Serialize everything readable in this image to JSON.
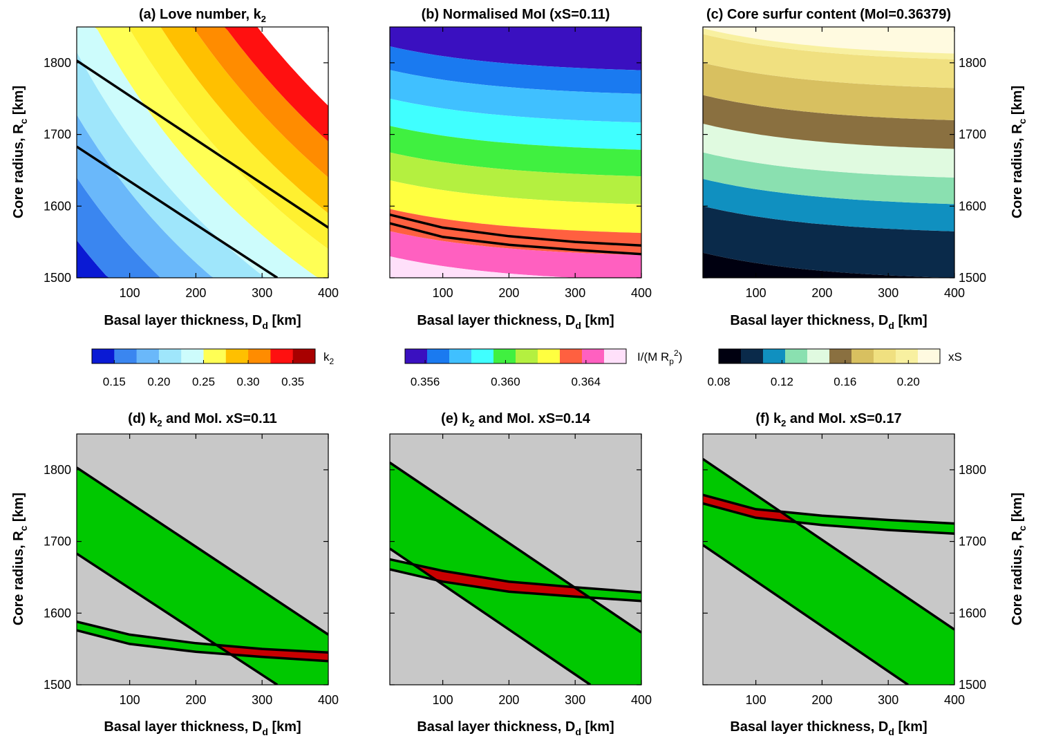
{
  "figure": {
    "panels": [
      {
        "id": "a",
        "title": "(a) Love number, ",
        "title_sym": "k",
        "title_sub": "2",
        "title_tail": ""
      },
      {
        "id": "b",
        "title": "(b) Normalised MoI (xS=0.11)",
        "title_sym": "",
        "title_sub": "",
        "title_tail": ""
      },
      {
        "id": "c",
        "title": "(c) Core surfur content (MoI=0.36379)",
        "title_sym": "",
        "title_sub": "",
        "title_tail": ""
      },
      {
        "id": "d",
        "title": "(d) ",
        "title_sym": "k",
        "title_sub": "2",
        "title_tail": " and MoI. xS=0.11"
      },
      {
        "id": "e",
        "title": "(e) ",
        "title_sym": "k",
        "title_sub": "2",
        "title_tail": " and MoI.  xS=0.14"
      },
      {
        "id": "f",
        "title": "(f) ",
        "title_sym": "k",
        "title_sub": "2",
        "title_tail": " and MoI.  xS=0.17"
      }
    ],
    "xlabel": {
      "text": "Basal layer thickness, D",
      "sub": "d",
      "unit": " [km]"
    },
    "ylabel": {
      "text": "Core radius, R",
      "sub": "c",
      "unit": " [km]"
    },
    "xticks": [
      "100",
      "200",
      "300",
      "400"
    ],
    "yticks": [
      "1500",
      "1600",
      "1700",
      "1800"
    ],
    "colorbars": [
      {
        "label": "k",
        "label_sub": "2",
        "label_sup": "",
        "label_tail": "",
        "ticks": [
          "0.15",
          "0.20",
          "0.25",
          "0.30",
          "0.35"
        ]
      },
      {
        "label": "I/(M R",
        "label_sub": "p",
        "label_sup": "2",
        "label_tail": ")",
        "ticks": [
          "0.356",
          "0.360",
          "0.364"
        ]
      },
      {
        "label": "xS",
        "label_sub": "",
        "label_sup": "",
        "label_tail": "",
        "ticks": [
          "0.08",
          "0.12",
          "0.16",
          "0.20"
        ]
      }
    ]
  },
  "chart_data": [
    {
      "type": "heatmap",
      "panel": "a",
      "title": "(a) Love number, k2",
      "xlabel": "Basal layer thickness, Dd [km]",
      "ylabel": "Core radius, Rc [km]",
      "xlim": [
        20,
        400
      ],
      "ylim": [
        1500,
        1850
      ],
      "variable": "k2",
      "levels": [
        0.125,
        0.15,
        0.175,
        0.2,
        0.225,
        0.25,
        0.275,
        0.3,
        0.325,
        0.35,
        0.375
      ],
      "colors": [
        "#0a1ad4",
        "#3a86f0",
        "#6ab8fa",
        "#9fe6fb",
        "#cdfcfc",
        "#ffff55",
        "#fff030",
        "#ffc000",
        "#ff8c00",
        "#ff1010",
        "#a80000"
      ],
      "contour_lines": [
        {
          "name": "k2 lower bound",
          "points": [
            [
              20,
              1683
            ],
            [
              323,
              1500
            ]
          ]
        },
        {
          "name": "k2 upper bound",
          "points": [
            [
              20,
              1803
            ],
            [
              400,
              1570
            ]
          ]
        }
      ],
      "field_samples": [
        [
          20,
          1500,
          0.135
        ],
        [
          20,
          1850,
          0.235
        ],
        [
          400,
          1500,
          0.255
        ],
        [
          400,
          1850,
          0.33
        ]
      ]
    },
    {
      "type": "heatmap",
      "panel": "b",
      "title": "(b) Normalised MoI (xS=0.11)",
      "xlabel": "Basal layer thickness, Dd [km]",
      "ylabel": "Core radius, Rc [km]",
      "xlim": [
        20,
        400
      ],
      "ylim": [
        1500,
        1850
      ],
      "variable": "I/(M Rp^2)",
      "levels": [
        0.355,
        0.356,
        0.357,
        0.358,
        0.359,
        0.36,
        0.361,
        0.362,
        0.363,
        0.364,
        0.365,
        0.366
      ],
      "colors": [
        "#3a10c0",
        "#1a7af0",
        "#40c0ff",
        "#40ffff",
        "#40f040",
        "#b4f040",
        "#ffff40",
        "#ff6040",
        "#ff60c0",
        "#ffe0fa"
      ],
      "contour_lines": [
        {
          "name": "MoI upper bound",
          "points": [
            [
              20,
              1588
            ],
            [
              100,
              1570
            ],
            [
              200,
              1558
            ],
            [
              300,
              1550
            ],
            [
              400,
              1545
            ]
          ]
        },
        {
          "name": "MoI lower bound",
          "points": [
            [
              20,
              1576
            ],
            [
              100,
              1557
            ],
            [
              200,
              1546
            ],
            [
              300,
              1539
            ],
            [
              400,
              1533
            ]
          ]
        }
      ]
    },
    {
      "type": "heatmap",
      "panel": "c",
      "title": "(c) Core surfur content (MoI=0.36379)",
      "xlabel": "Basal layer thickness, Dd [km]",
      "ylabel": "Core radius, Rc [km]",
      "xlim": [
        20,
        400
      ],
      "ylim": [
        1500,
        1850
      ],
      "variable": "xS",
      "levels": [
        0.08,
        0.094,
        0.108,
        0.122,
        0.136,
        0.15,
        0.164,
        0.178,
        0.192,
        0.206,
        0.22
      ],
      "colors": [
        "#000010",
        "#0a2a4a",
        "#1090c0",
        "#8ae0b0",
        "#e0fae0",
        "#8a7040",
        "#d8c060",
        "#f0e080",
        "#f8f0a0",
        "#fffae0"
      ]
    },
    {
      "type": "area",
      "panel": "d",
      "title": "(d) k2 and MoI. xS=0.11",
      "xlim": [
        20,
        400
      ],
      "ylim": [
        1500,
        1850
      ],
      "k2_band": {
        "lower": [
          [
            20,
            1683
          ],
          [
            323,
            1500
          ]
        ],
        "upper": [
          [
            20,
            1803
          ],
          [
            400,
            1570
          ]
        ]
      },
      "moi_band": {
        "upper": [
          [
            20,
            1588
          ],
          [
            100,
            1570
          ],
          [
            200,
            1558
          ],
          [
            300,
            1550
          ],
          [
            400,
            1545
          ]
        ],
        "lower": [
          [
            20,
            1576
          ],
          [
            100,
            1557
          ],
          [
            200,
            1546
          ],
          [
            300,
            1539
          ],
          [
            400,
            1533
          ]
        ]
      },
      "colors": {
        "background": "#c8c8c8",
        "band": "#00c800",
        "overlap": "#c80000"
      }
    },
    {
      "type": "area",
      "panel": "e",
      "title": "(e) k2 and MoI. xS=0.14",
      "xlim": [
        20,
        400
      ],
      "ylim": [
        1500,
        1850
      ],
      "k2_band": {
        "lower": [
          [
            20,
            1690
          ],
          [
            323,
            1500
          ]
        ],
        "upper": [
          [
            20,
            1810
          ],
          [
            400,
            1573
          ]
        ]
      },
      "moi_band": {
        "upper": [
          [
            20,
            1675
          ],
          [
            100,
            1659
          ],
          [
            200,
            1644
          ],
          [
            300,
            1636
          ],
          [
            400,
            1629
          ]
        ],
        "lower": [
          [
            20,
            1661
          ],
          [
            100,
            1644
          ],
          [
            200,
            1630
          ],
          [
            300,
            1623
          ],
          [
            400,
            1617
          ]
        ]
      },
      "colors": {
        "background": "#c8c8c8",
        "band": "#00c800",
        "overlap": "#c80000"
      }
    },
    {
      "type": "area",
      "panel": "f",
      "title": "(f) k2 and MoI. xS=0.17",
      "xlim": [
        20,
        400
      ],
      "ylim": [
        1500,
        1850
      ],
      "k2_band": {
        "lower": [
          [
            20,
            1695
          ],
          [
            330,
            1500
          ]
        ],
        "upper": [
          [
            20,
            1815
          ],
          [
            400,
            1577
          ]
        ]
      },
      "moi_band": {
        "upper": [
          [
            20,
            1765
          ],
          [
            100,
            1745
          ],
          [
            200,
            1736
          ],
          [
            300,
            1730
          ],
          [
            400,
            1725
          ]
        ],
        "lower": [
          [
            20,
            1753
          ],
          [
            100,
            1733
          ],
          [
            200,
            1723
          ],
          [
            300,
            1716
          ],
          [
            400,
            1711
          ]
        ]
      },
      "colors": {
        "background": "#c8c8c8",
        "band": "#00c800",
        "overlap": "#c80000"
      }
    }
  ]
}
